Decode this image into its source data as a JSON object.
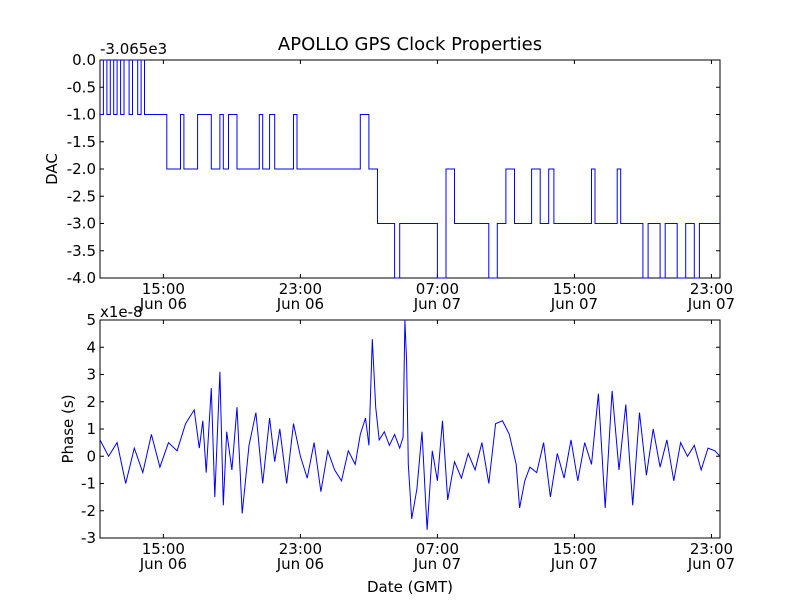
{
  "figure": {
    "title": "APOLLO GPS Clock Properties",
    "xlabel": "Date (GMT)"
  },
  "x_ticks": [
    {
      "time": "15:00",
      "date": "Jun 06",
      "hours": 15
    },
    {
      "time": "23:00",
      "date": "Jun 06",
      "hours": 23
    },
    {
      "time": "07:00",
      "date": "Jun 07",
      "hours": 31
    },
    {
      "time": "15:00",
      "date": "Jun 07",
      "hours": 39
    },
    {
      "time": "23:00",
      "date": "Jun 07",
      "hours": 47
    }
  ],
  "colors": {
    "line": "#0000ff",
    "axes": "#000000",
    "background": "#ffffff"
  },
  "chart_data": [
    {
      "type": "line",
      "name": "dac",
      "ylabel": "DAC",
      "y_offset_label": "-3.065e3",
      "xlim_hours": [
        11.3,
        47.5
      ],
      "ylim": [
        -4.0,
        0.0
      ],
      "y_ticks": [
        0.0,
        -0.5,
        -1.0,
        -1.5,
        -2.0,
        -2.5,
        -3.0,
        -3.5,
        -4.0
      ],
      "y_tick_labels": [
        "0.0",
        "-0.5",
        "-1.0",
        "-1.5",
        "-2.0",
        "-2.5",
        "-3.0",
        "-3.5",
        "-4.0"
      ],
      "series": [
        {
          "x_hours": [
            11.3,
            11.5,
            11.5,
            11.7,
            11.7,
            11.9,
            11.9,
            12.1,
            12.1,
            12.3,
            12.3,
            12.5,
            12.5,
            12.7,
            12.7,
            13.0,
            13.0,
            13.2,
            13.2,
            13.5,
            13.5,
            13.7,
            13.7,
            13.9,
            13.9,
            15.2,
            15.2,
            16.0,
            16.0,
            16.2,
            16.2,
            17.0,
            17.0,
            17.8,
            17.8,
            18.3,
            18.3,
            18.5,
            18.5,
            18.8,
            18.8,
            19.3,
            19.3,
            20.6,
            20.6,
            20.8,
            20.8,
            21.2,
            21.2,
            21.5,
            21.5,
            22.6,
            22.6,
            22.8,
            22.8,
            26.5,
            26.5,
            27.0,
            27.0,
            27.5,
            27.5,
            28.5,
            28.5,
            28.8,
            28.8,
            29.0,
            29.0,
            31.0,
            31.0,
            31.5,
            31.5,
            32.0,
            32.0,
            33.0,
            33.0,
            34.0,
            34.0,
            34.5,
            34.5,
            35.0,
            35.0,
            35.5,
            35.5,
            36.5,
            36.5,
            37.0,
            37.0,
            37.5,
            37.5,
            37.8,
            37.8,
            40.0,
            40.0,
            40.2,
            40.2,
            41.5,
            41.5,
            41.7,
            41.7,
            43.0,
            43.0,
            43.3,
            43.3,
            44.0,
            44.0,
            44.3,
            44.3,
            45.0,
            45.0,
            45.5,
            45.5,
            46.0,
            46.0,
            46.3,
            46.3,
            47.0,
            47.0,
            47.5
          ],
          "y": [
            -1.0,
            -1.0,
            0.0,
            0.0,
            -1.0,
            -1.0,
            0.0,
            0.0,
            -1.0,
            -1.0,
            0.0,
            0.0,
            -1.0,
            -1.0,
            0.0,
            0.0,
            -1.0,
            -1.0,
            0.0,
            0.0,
            -1.0,
            -1.0,
            0.0,
            0.0,
            -1.0,
            -1.0,
            -2.0,
            -2.0,
            -1.0,
            -1.0,
            -2.0,
            -2.0,
            -1.0,
            -1.0,
            -2.0,
            -2.0,
            -1.0,
            -1.0,
            -2.0,
            -2.0,
            -1.0,
            -1.0,
            -2.0,
            -2.0,
            -1.0,
            -1.0,
            -2.0,
            -2.0,
            -1.0,
            -1.0,
            -2.0,
            -2.0,
            -1.0,
            -1.0,
            -2.0,
            -2.0,
            -1.0,
            -1.0,
            -2.0,
            -2.0,
            -3.0,
            -3.0,
            -4.0,
            -4.0,
            -3.0,
            -3.0,
            -3.0,
            -3.0,
            -4.0,
            -4.0,
            -2.0,
            -2.0,
            -3.0,
            -3.0,
            -3.0,
            -3.0,
            -4.0,
            -4.0,
            -3.0,
            -3.0,
            -2.0,
            -2.0,
            -3.0,
            -3.0,
            -2.0,
            -2.0,
            -3.0,
            -3.0,
            -2.0,
            -2.0,
            -3.0,
            -3.0,
            -2.0,
            -2.0,
            -3.0,
            -3.0,
            -2.0,
            -2.0,
            -3.0,
            -3.0,
            -4.0,
            -4.0,
            -3.0,
            -3.0,
            -4.0,
            -4.0,
            -3.0,
            -3.0,
            -4.0,
            -4.0,
            -3.0,
            -3.0,
            -4.0,
            -4.0,
            -3.0,
            -3.0,
            -3.0,
            -3.0
          ]
        }
      ]
    },
    {
      "type": "line",
      "name": "phase",
      "ylabel": "Phase (s)",
      "y_offset_label": "x1e-8",
      "xlim_hours": [
        11.3,
        47.5
      ],
      "ylim": [
        -3,
        5
      ],
      "y_ticks": [
        5,
        4,
        3,
        2,
        1,
        0,
        -1,
        -2,
        -3
      ],
      "y_tick_labels": [
        "5",
        "4",
        "3",
        "2",
        "1",
        "0",
        "-1",
        "-2",
        "-3"
      ],
      "series": [
        {
          "x_hours": [
            11.3,
            11.8,
            12.3,
            12.8,
            13.3,
            13.8,
            14.3,
            14.8,
            15.3,
            15.8,
            16.3,
            16.8,
            17.1,
            17.3,
            17.5,
            17.8,
            18.0,
            18.3,
            18.5,
            18.7,
            19.0,
            19.3,
            19.6,
            20.0,
            20.4,
            20.8,
            21.2,
            21.5,
            21.8,
            22.2,
            22.6,
            23.0,
            23.4,
            23.8,
            24.2,
            24.6,
            25.0,
            25.4,
            25.8,
            26.2,
            26.5,
            26.8,
            27.0,
            27.2,
            27.4,
            27.6,
            27.9,
            28.2,
            28.5,
            28.8,
            29.0,
            29.1,
            29.2,
            29.3,
            29.5,
            29.8,
            30.1,
            30.4,
            30.7,
            31.0,
            31.3,
            31.6,
            32.0,
            32.4,
            32.8,
            33.2,
            33.6,
            34.0,
            34.4,
            34.8,
            35.2,
            35.6,
            35.8,
            36.1,
            36.4,
            36.8,
            37.2,
            37.6,
            38.0,
            38.4,
            38.8,
            39.2,
            39.6,
            40.0,
            40.4,
            40.8,
            41.2,
            41.6,
            42.0,
            42.4,
            42.8,
            43.2,
            43.6,
            44.0,
            44.4,
            44.8,
            45.2,
            45.6,
            46.0,
            46.4,
            46.8,
            47.2,
            47.5
          ],
          "y": [
            0.6,
            0.0,
            0.5,
            -1.0,
            0.3,
            -0.6,
            0.8,
            -0.4,
            0.5,
            0.2,
            1.2,
            1.7,
            0.3,
            1.3,
            -0.6,
            2.5,
            -1.5,
            3.1,
            -1.8,
            0.9,
            -0.5,
            1.8,
            -2.1,
            0.4,
            1.6,
            -1.0,
            1.4,
            -0.2,
            1.0,
            -1.0,
            1.2,
            0.0,
            -0.8,
            0.5,
            -1.3,
            0.2,
            -0.5,
            -0.9,
            0.2,
            -0.3,
            0.8,
            1.4,
            0.4,
            4.3,
            1.8,
            0.6,
            0.9,
            0.4,
            0.8,
            0.3,
            0.7,
            5.0,
            3.5,
            -0.3,
            -2.3,
            -1.2,
            0.9,
            -2.7,
            0.2,
            -0.9,
            1.3,
            -1.6,
            -0.2,
            -0.8,
            0.1,
            -0.5,
            0.5,
            -1.0,
            1.2,
            1.3,
            0.8,
            -0.3,
            -1.9,
            -0.9,
            -0.4,
            -0.6,
            0.5,
            -1.5,
            0.1,
            -0.8,
            0.6,
            -0.9,
            0.5,
            -0.3,
            2.3,
            -1.9,
            2.4,
            -0.5,
            1.9,
            -1.8,
            1.6,
            -0.7,
            1.0,
            -0.4,
            0.6,
            -0.9,
            0.5,
            0.0,
            0.4,
            -0.5,
            0.3,
            0.2,
            0.0
          ]
        }
      ]
    }
  ]
}
